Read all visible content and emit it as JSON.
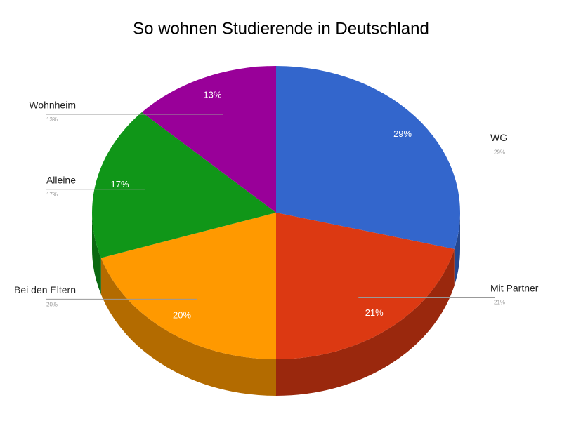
{
  "chart_data": {
    "type": "pie3d",
    "title": "So wohnen Studierende in Deutschland",
    "categories": [
      "WG",
      "Mit Partner",
      "Bei den Eltern",
      "Alleine",
      "Wohnheim"
    ],
    "values": [
      29,
      21,
      20,
      17,
      13
    ],
    "value_labels": [
      "29%",
      "21%",
      "20%",
      "17%",
      "13%"
    ],
    "colors": [
      "#3366cc",
      "#dc3912",
      "#ff9900",
      "#109618",
      "#990099"
    ]
  }
}
